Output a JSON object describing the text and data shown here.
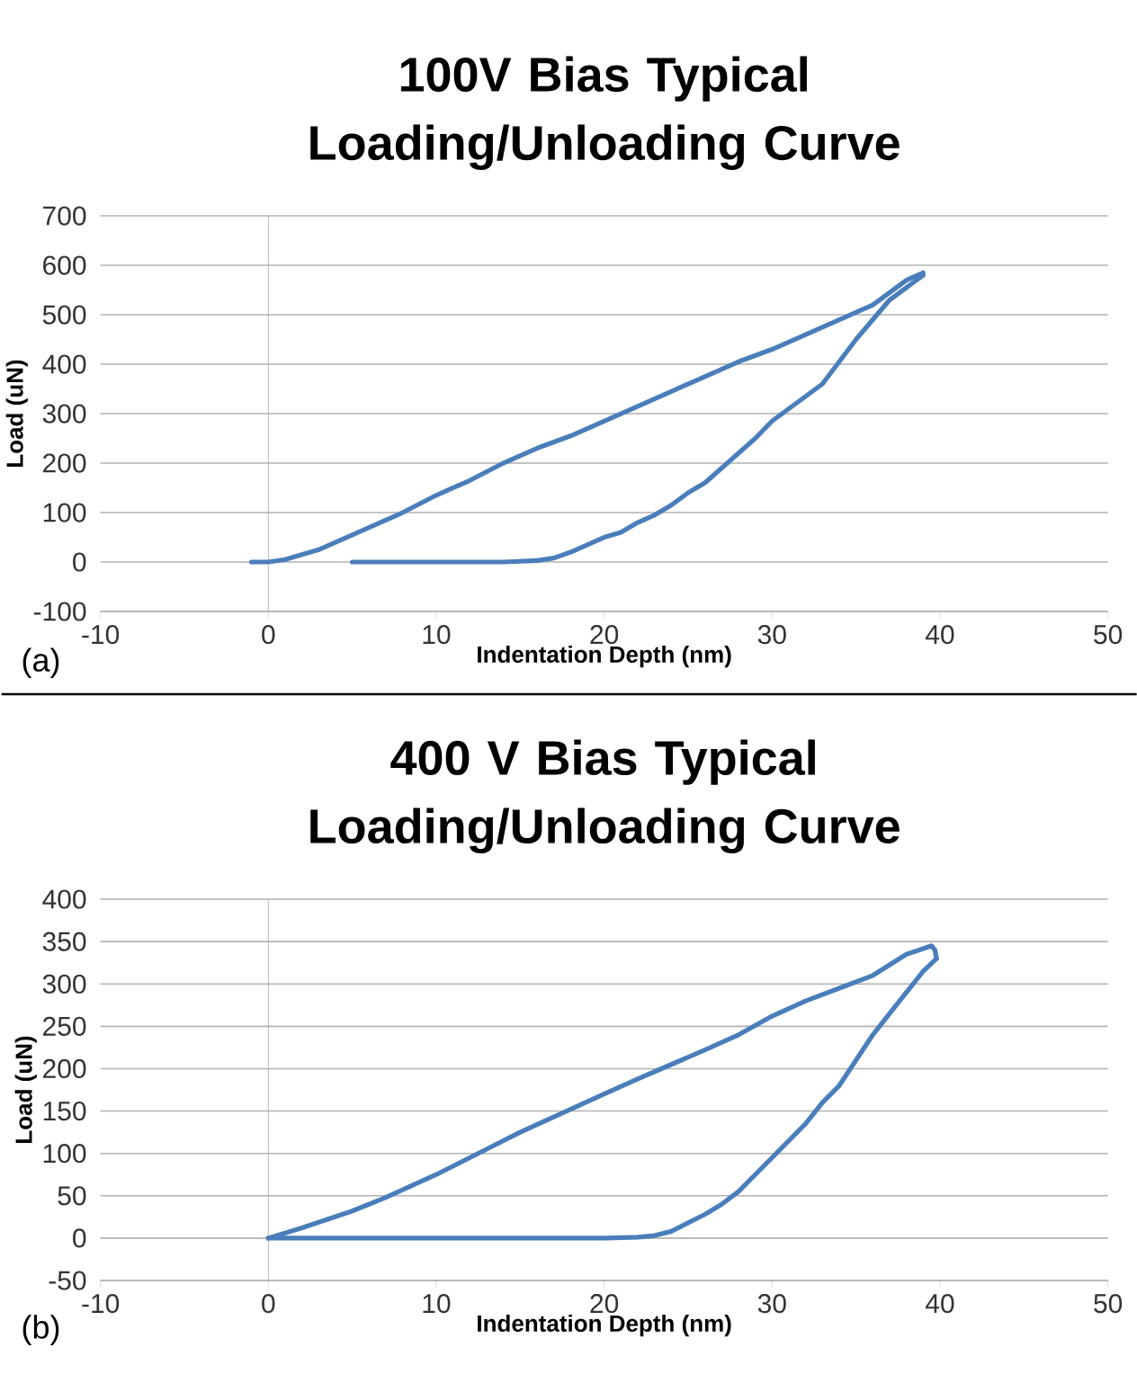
{
  "chart_data": [
    {
      "type": "line",
      "title": "100V Bias Typical Loading/Unloading Curve",
      "xlabel": "Indentation Depth (nm)",
      "ylabel": "Load (uN)",
      "annotations": [
        "(a)"
      ],
      "xlim": [
        -10,
        50
      ],
      "ylim": [
        -100,
        700
      ],
      "xticks": [
        -10,
        0,
        10,
        20,
        30,
        40,
        50
      ],
      "yticks": [
        -100,
        0,
        100,
        200,
        300,
        400,
        500,
        600,
        700
      ],
      "grid": "y",
      "marker": "none",
      "line_style": "solid",
      "series": [
        {
          "color": "#4a7ebb",
          "x": [
            -1,
            0,
            1,
            3,
            5,
            7,
            8,
            10,
            12,
            14,
            16,
            18,
            20,
            22,
            24,
            26,
            28,
            30,
            32,
            34,
            36,
            37,
            38,
            39
          ],
          "values": [
            0,
            0,
            5,
            25,
            55,
            85,
            100,
            135,
            165,
            200,
            230,
            255,
            285,
            315,
            345,
            375,
            405,
            430,
            460,
            490,
            520,
            545,
            570,
            585
          ]
        },
        {
          "color": "#4a7ebb",
          "x": [
            39,
            38,
            37,
            36,
            35,
            34,
            33,
            32,
            31,
            30,
            29,
            28,
            27,
            26,
            25,
            24,
            23,
            22,
            21,
            20,
            19,
            18,
            17,
            16,
            14,
            10,
            5
          ],
          "values": [
            580,
            555,
            530,
            490,
            450,
            405,
            360,
            335,
            310,
            285,
            250,
            220,
            190,
            160,
            140,
            115,
            95,
            80,
            60,
            50,
            35,
            20,
            8,
            3,
            0,
            0,
            0
          ]
        }
      ]
    },
    {
      "type": "line",
      "title": "400 V Bias Typical Loading/Unloading Curve",
      "xlabel": "Indentation Depth (nm)",
      "ylabel": "Load (uN)",
      "annotations": [
        "(b)"
      ],
      "xlim": [
        -10,
        50
      ],
      "ylim": [
        -50,
        400
      ],
      "xticks": [
        -10,
        0,
        10,
        20,
        30,
        40,
        50
      ],
      "yticks": [
        -50,
        0,
        50,
        100,
        150,
        200,
        250,
        300,
        350,
        400
      ],
      "grid": "y",
      "marker": "none",
      "line_style": "solid",
      "series": [
        {
          "color": "#4a7ebb",
          "x": [
            0,
            2,
            5,
            7,
            10,
            13,
            15,
            17,
            20,
            22,
            24,
            26,
            28,
            30,
            32,
            34,
            36,
            38,
            39.5,
            39.7,
            39.8
          ],
          "values": [
            0,
            12,
            32,
            48,
            75,
            105,
            125,
            143,
            170,
            188,
            205,
            222,
            240,
            262,
            280,
            295,
            310,
            335,
            345,
            340,
            330
          ]
        },
        {
          "color": "#4a7ebb",
          "x": [
            39.8,
            39,
            38,
            37,
            36,
            35,
            34,
            33,
            32,
            31,
            30,
            29,
            28,
            27,
            26,
            25,
            24,
            23,
            22,
            20,
            10,
            0
          ],
          "values": [
            330,
            315,
            290,
            265,
            240,
            210,
            180,
            160,
            135,
            115,
            95,
            75,
            55,
            40,
            28,
            18,
            8,
            3,
            1,
            0,
            0,
            0
          ]
        }
      ]
    }
  ]
}
